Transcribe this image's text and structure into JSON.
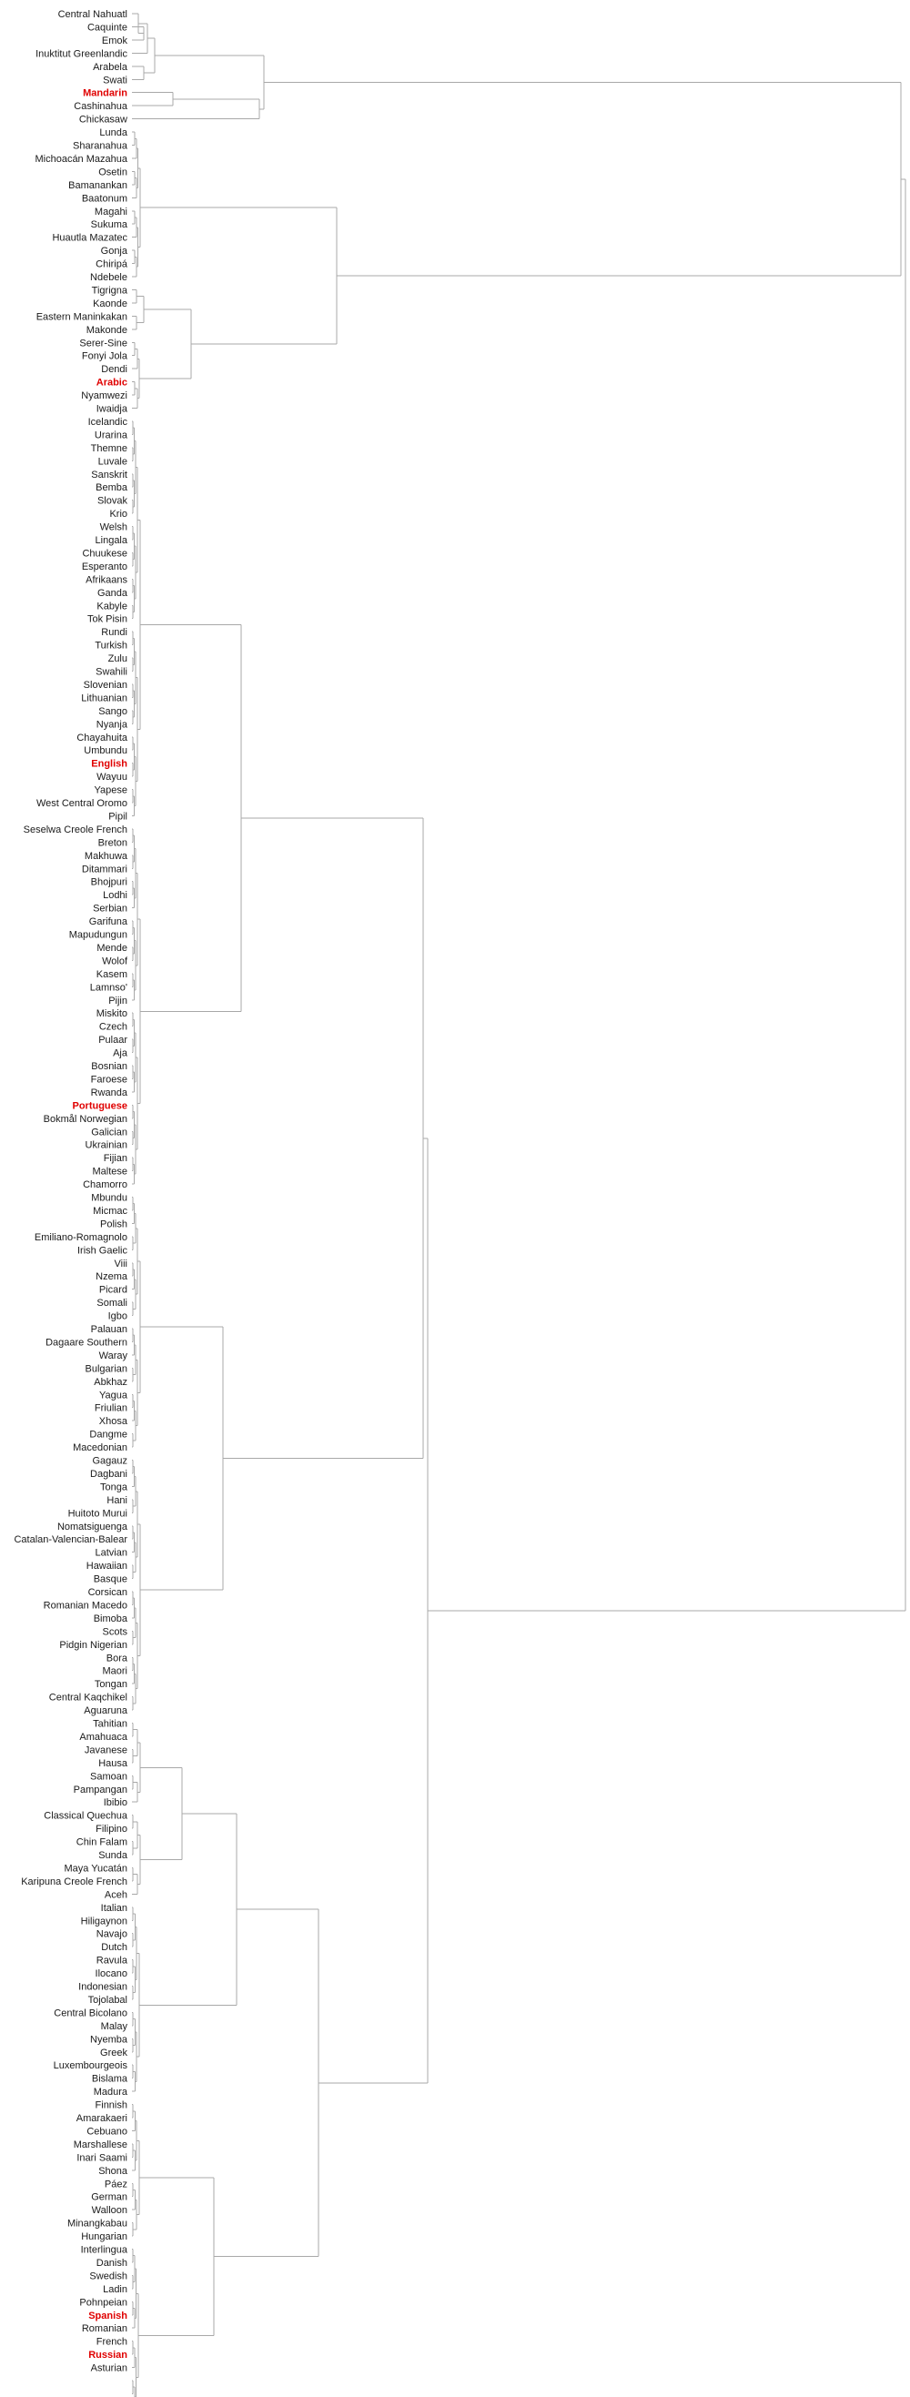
{
  "highlight_color": "#e00000",
  "line_color": "#a8a8a8",
  "leaves": [
    "Central Nahuatl",
    "Caquinte",
    "Emok",
    "Inuktitut Greenlandic",
    "Arabela",
    "Swati",
    {
      "label": "Mandarin",
      "highlight": true
    },
    "Cashinahua",
    "Chickasaw",
    "Lunda",
    "Sharanahua",
    "Michoacán Mazahua",
    "Osetin",
    "Bamanankan",
    "Baatonum",
    "Magahi",
    "Sukuma",
    "Huautla Mazatec",
    "Gonja",
    "Chiripá",
    "Ndebele",
    "Tigrigna",
    "Kaonde",
    "Eastern Maninkakan",
    "Makonde",
    "Serer-Sine",
    "Fonyi Jola",
    "Dendi",
    {
      "label": "Arabic",
      "highlight": true
    },
    "Nyamwezi",
    "Iwaidja",
    "Icelandic",
    "Urarina",
    "Themne",
    "Luvale",
    "Sanskrit",
    "Bemba",
    "Slovak",
    "Krio",
    "Welsh",
    "Lingala",
    "Chuukese",
    "Esperanto",
    "Afrikaans",
    "Ganda",
    "Kabyle",
    "Tok Pisin",
    "Rundi",
    "Turkish",
    "Zulu",
    "Swahili",
    "Slovenian",
    "Lithuanian",
    "Sango",
    "Nyanja",
    "Chayahuita",
    "Umbundu",
    {
      "label": "English",
      "highlight": true
    },
    "Wayuu",
    "Yapese",
    "West Central Oromo",
    "Pipil",
    "Seselwa Creole French",
    "Breton",
    "Makhuwa",
    "Ditammari",
    "Bhojpuri",
    "Lodhi",
    "Serbian",
    "Garifuna",
    "Mapudungun",
    "Mende",
    "Wolof",
    "Kasem",
    "Lamnso'",
    "Pijin",
    "Miskito",
    "Czech",
    "Pulaar",
    "Aja",
    "Bosnian",
    "Faroese",
    "Rwanda",
    {
      "label": "Portuguese",
      "highlight": true
    },
    "Bokmål Norwegian",
    "Galician",
    "Ukrainian",
    "Fijian",
    "Maltese",
    "Chamorro",
    "Mbundu",
    "Micmac",
    "Polish",
    "Emiliano-Romagnolo",
    "Irish Gaelic",
    "Viii",
    "Nzema",
    "Picard",
    "Somali",
    "Igbo",
    "Palauan",
    "Dagaare Southern",
    "Waray",
    "Bulgarian",
    "Abkhaz",
    "Yagua",
    "Friulian",
    "Xhosa",
    "Dangme",
    "Macedonian",
    "Gagauz",
    "Dagbani",
    "Tonga",
    "Hani",
    "Huitoto Murui",
    "Nomatsiguenga",
    "Catalan-Valencian-Balear",
    "Latvian",
    "Hawaiian",
    "Basque",
    "Corsican",
    "Romanian Macedo",
    "Bimoba",
    "Scots",
    "Pidgin Nigerian",
    "Bora",
    "Maori",
    "Tongan",
    "Central Kaqchikel",
    "Aguaruna",
    "Tahitian",
    "Amahuaca",
    "Javanese",
    "Hausa",
    "Samoan",
    "Pampangan",
    "Ibibio",
    "Classical Quechua",
    "Filipino",
    "Chin Falam",
    "Sunda",
    "Maya Yucatán",
    "Karipuna Creole French",
    "Aceh",
    "Italian",
    "Hiligaynon",
    "Navajo",
    "Dutch",
    "Ravula",
    "Ilocano",
    "Indonesian",
    "Tojolabal",
    "Central Bicolano",
    "Malay",
    "Nyemba",
    "Greek",
    "Luxembourgeois",
    "Bislama",
    "Madura",
    "Finnish",
    "Amarakaeri",
    "Cebuano",
    "Marshallese",
    "Inari Saami",
    "Shona",
    "Páez",
    "German",
    "Walloon",
    "Minangkabau",
    "Hungarian",
    "Interlingua",
    "Danish",
    "Swedish",
    "Ladin",
    "Pohnpeian",
    {
      "label": "Spanish",
      "highlight": true
    },
    "Romanian",
    "French",
    {
      "label": "Russian",
      "highlight": true
    },
    "Asturian"
  ]
}
